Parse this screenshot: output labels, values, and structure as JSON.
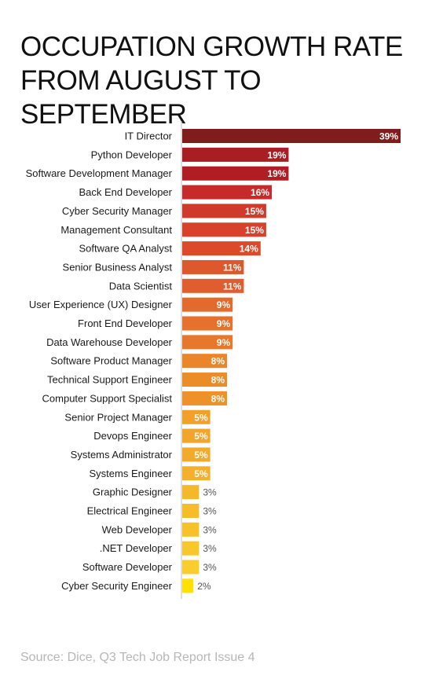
{
  "title_line1": "OCCUPATION GROWTH RATE",
  "title_line2": "FROM AUGUST TO SEPTEMBER",
  "source": "Source: Dice, Q3 Tech Job Report Issue 4",
  "chart_data": {
    "type": "bar",
    "orientation": "horizontal",
    "categories": [
      "IT Director",
      "Python Developer",
      "Software Development Manager",
      "Back End Developer",
      "Cyber Security Manager",
      "Management Consultant",
      "Software QA Analyst",
      "Senior Business Analyst",
      "Data Scientist",
      "User Experience (UX) Designer",
      "Front End Developer",
      "Data Warehouse Developer",
      "Software Product Manager",
      "Technical Support Engineer",
      "Computer Support Specialist",
      "Senior Project Manager",
      "Devops Engineer",
      "Systems Administrator",
      "Systems Engineer",
      "Graphic Designer",
      "Electrical Engineer",
      "Web Developer",
      ".NET Developer",
      "Software Developer",
      "Cyber Security Engineer"
    ],
    "values": [
      39,
      19,
      19,
      16,
      15,
      15,
      14,
      11,
      11,
      9,
      9,
      9,
      8,
      8,
      8,
      5,
      5,
      5,
      5,
      3,
      3,
      3,
      3,
      3,
      2
    ],
    "labels": [
      "39%",
      "19%",
      "19%",
      "16%",
      "15%",
      "15%",
      "14%",
      "11%",
      "11%",
      "9%",
      "9%",
      "9%",
      "8%",
      "8%",
      "8%",
      "5%",
      "5%",
      "5%",
      "5%",
      "3%",
      "3%",
      "3%",
      "3%",
      "3%",
      "2%"
    ],
    "colors": [
      "#7f1d1d",
      "#a81e23",
      "#b01e24",
      "#c62a2a",
      "#cf3b2b",
      "#d8422b",
      "#dc4a2b",
      "#de582d",
      "#e05d2d",
      "#e36a2d",
      "#e5712c",
      "#e7782b",
      "#ea852a",
      "#ec8c29",
      "#ed9228",
      "#f0a12a",
      "#f1a529",
      "#f2aa28",
      "#f4b02a",
      "#f5b82b",
      "#f6bd2b",
      "#f7c12b",
      "#f8c72c",
      "#f9cd2d",
      "#ffe100"
    ],
    "xlim": [
      0,
      39
    ],
    "ylabel": "",
    "xlabel": ""
  }
}
